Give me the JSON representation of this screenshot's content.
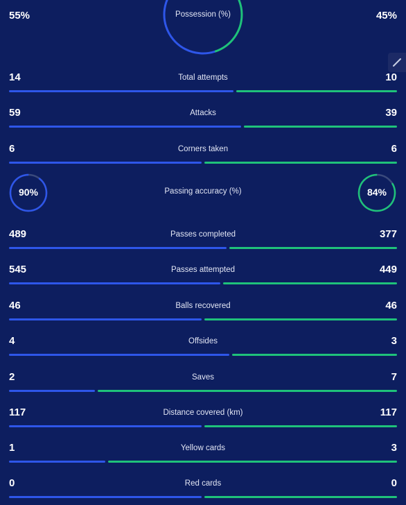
{
  "colors": {
    "background": "#0d1e5f",
    "home": "#2e56e9",
    "away": "#1fc27a"
  },
  "possession": {
    "label": "Possession (%)",
    "home": "55%",
    "away": "45%",
    "home_value": 55,
    "away_value": 45
  },
  "edit_icon": "pencil-icon",
  "passing_accuracy": {
    "label": "Passing accuracy (%)",
    "home": "90%",
    "away": "84%",
    "home_value": 90,
    "away_value": 84
  },
  "stats": [
    {
      "label": "Total attempts",
      "home": "14",
      "away": "10"
    },
    {
      "label": "Attacks",
      "home": "59",
      "away": "39"
    },
    {
      "label": "Corners taken",
      "home": "6",
      "away": "6"
    },
    {
      "label": "Passes completed",
      "home": "489",
      "away": "377"
    },
    {
      "label": "Passes attempted",
      "home": "545",
      "away": "449"
    },
    {
      "label": "Balls recovered",
      "home": "46",
      "away": "46"
    },
    {
      "label": "Offsides",
      "home": "4",
      "away": "3"
    },
    {
      "label": "Saves",
      "home": "2",
      "away": "7"
    },
    {
      "label": "Distance covered (km)",
      "home": "117",
      "away": "117"
    },
    {
      "label": "Yellow cards",
      "home": "1",
      "away": "3"
    },
    {
      "label": "Red cards",
      "home": "0",
      "away": "0"
    }
  ]
}
